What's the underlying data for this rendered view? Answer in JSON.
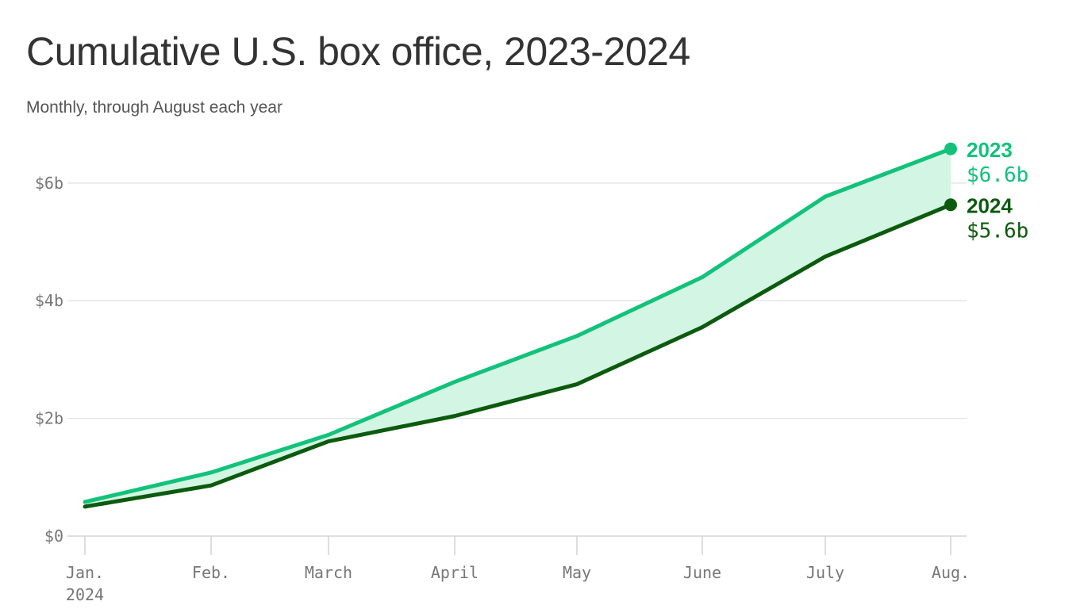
{
  "title": "Cumulative U.S. box office, 2023-2024",
  "subtitle": "Monthly, through August each year",
  "chart_data": {
    "type": "area",
    "categories": [
      "Jan.",
      "Feb.",
      "March",
      "April",
      "May",
      "June",
      "July",
      "Aug."
    ],
    "x_year_label": "2024",
    "series": [
      {
        "name": "2023",
        "end_label": "$6.6b",
        "color": "#12c27b",
        "values": [
          0.58,
          1.08,
          1.72,
          2.62,
          3.4,
          4.4,
          5.77,
          6.58
        ]
      },
      {
        "name": "2024",
        "end_label": "$5.6b",
        "color": "#0c5a0e",
        "values": [
          0.5,
          0.86,
          1.61,
          2.04,
          2.58,
          3.55,
          4.75,
          5.63
        ]
      }
    ],
    "fill_between_color": "#d3f5e3",
    "y_ticks": [
      {
        "value": 0,
        "label": "$0"
      },
      {
        "value": 2,
        "label": "$2b"
      },
      {
        "value": 4,
        "label": "$4b"
      },
      {
        "value": 6,
        "label": "$6b"
      }
    ],
    "ylim": [
      0,
      6.6
    ],
    "grid": true,
    "legend": "end-of-line labels"
  }
}
